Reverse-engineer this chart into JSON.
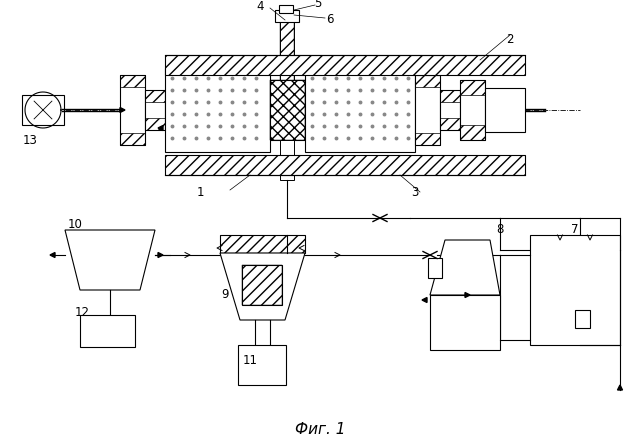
{
  "title": "Фиг. 1",
  "bg_color": "#ffffff",
  "fig_width": 6.4,
  "fig_height": 4.44,
  "dpi": 100
}
